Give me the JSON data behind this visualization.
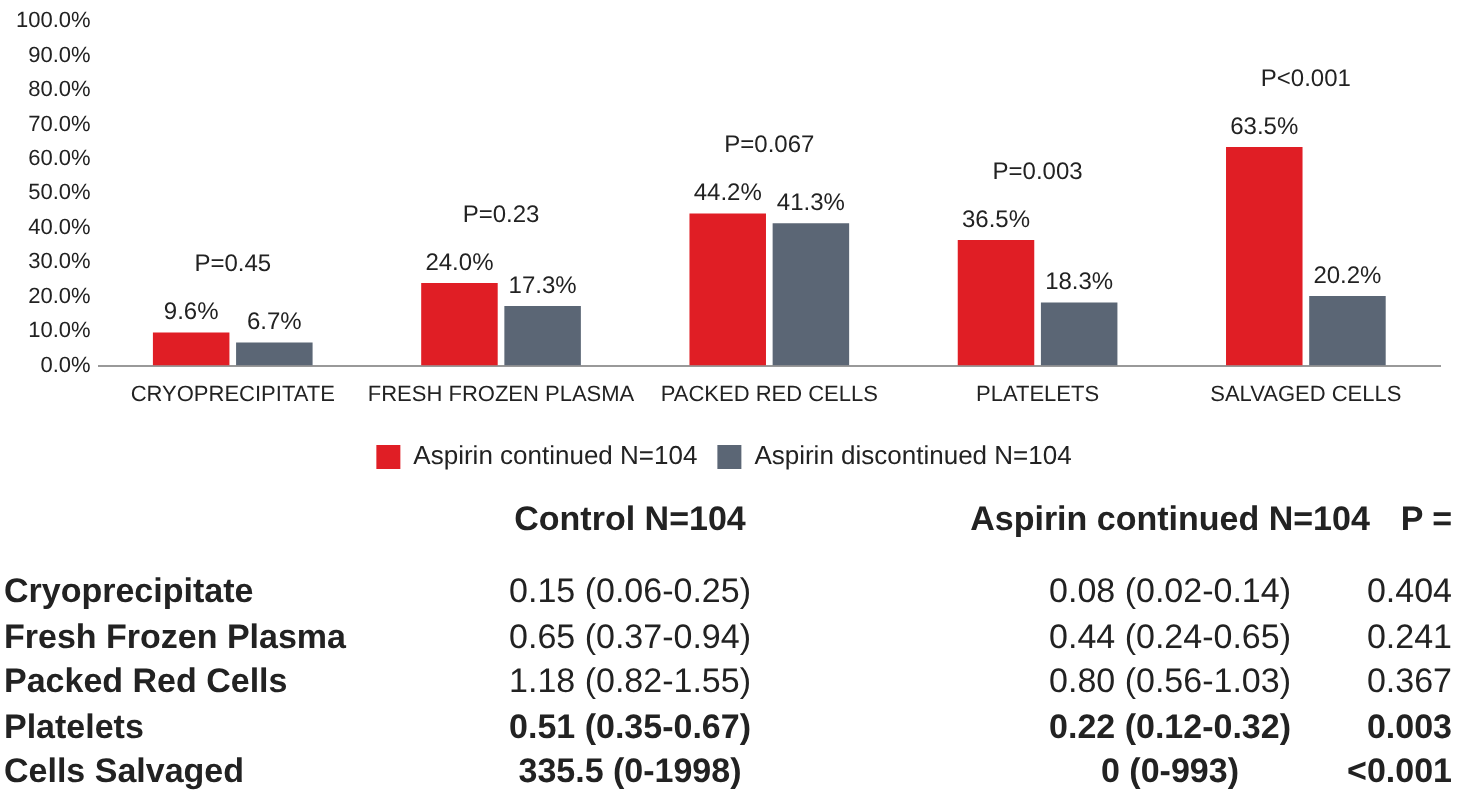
{
  "chart_data": {
    "type": "bar",
    "categories": [
      "CRYOPRECIPITATE",
      "FRESH FROZEN PLASMA",
      "PACKED RED CELLS",
      "PLATELETS",
      "SALVAGED CELLS"
    ],
    "series": [
      {
        "name": "Aspirin continued N=104",
        "color": "#e01e25",
        "values": [
          9.6,
          24.0,
          44.2,
          36.5,
          63.5
        ],
        "value_labels": [
          "9.6%",
          "24.0%",
          "44.2%",
          "36.5%",
          "63.5%"
        ]
      },
      {
        "name": "Aspirin discontinued N=104",
        "color": "#5b6675",
        "values": [
          6.7,
          17.3,
          41.3,
          18.3,
          20.2
        ],
        "value_labels": [
          "6.7%",
          "17.3%",
          "41.3%",
          "18.3%",
          "20.2%"
        ]
      }
    ],
    "ylim": [
      0,
      100
    ],
    "yticks": [
      {
        "value": 0,
        "label": "0.0%"
      },
      {
        "value": 10,
        "label": "10.0%"
      },
      {
        "value": 20,
        "label": "20.0%"
      },
      {
        "value": 30,
        "label": "30.0%"
      },
      {
        "value": 40,
        "label": "40.0%"
      },
      {
        "value": 50,
        "label": "50.0%"
      },
      {
        "value": 60,
        "label": "60.0%"
      },
      {
        "value": 70,
        "label": "70.0%"
      },
      {
        "value": 80,
        "label": "80.0%"
      },
      {
        "value": 90,
        "label": "90.0%"
      },
      {
        "value": 100,
        "label": "100.0%"
      }
    ],
    "grid": false,
    "legend": "bottom",
    "annotations": [
      "P=0.45",
      "P=0.23",
      "P=0.067",
      "P=0.003",
      "P<0.001",
      "Control N=104",
      "Aspirin continued N=104",
      "P =",
      "Cryoprecipitate",
      "0.15 (0.06-0.25)",
      "0.08 (0.02-0.14)",
      "0.404",
      "Fresh Frozen Plasma",
      "0.65 (0.37-0.94)",
      "0.44 (0.24-0.65)",
      "0.241",
      "Packed Red Cells",
      "1.18 (0.82-1.55)",
      "0.80 (0.56-1.03)",
      "0.367",
      "Platelets",
      "0.51 (0.35-0.67)",
      "0.22 (0.12-0.32)",
      "0.003",
      "Cells Salvaged",
      "335.5 (0-1998)",
      "0 (0-993)",
      "<0.001"
    ]
  }
}
